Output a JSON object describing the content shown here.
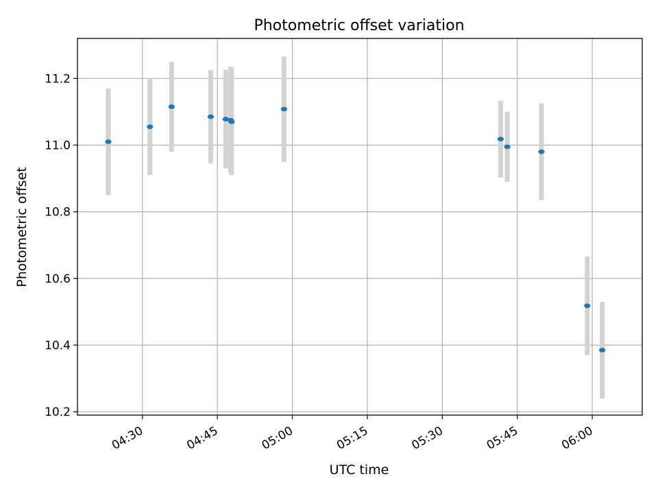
{
  "chart_data": {
    "type": "scatter",
    "title": "Photometric offset variation",
    "xlabel": "UTC time",
    "ylabel": "Photometric offset",
    "xlim": [
      "04:17",
      "06:10"
    ],
    "ylim": [
      10.19,
      11.32
    ],
    "xticks": [
      "04:30",
      "04:45",
      "05:00",
      "05:15",
      "05:30",
      "05:45",
      "06:00"
    ],
    "yticks": [
      10.2,
      10.4,
      10.6,
      10.8,
      11.0,
      11.2
    ],
    "grid": true,
    "legend": false,
    "colors": {
      "point": "#1f77b4",
      "errorbar": "#d3d3d3",
      "grid": "#b0b0b0"
    },
    "points": [
      {
        "x": "04:23:10",
        "y": 11.01,
        "err": 0.16
      },
      {
        "x": "04:31:30",
        "y": 11.055,
        "err": 0.145
      },
      {
        "x": "04:35:50",
        "y": 11.115,
        "err": 0.135
      },
      {
        "x": "04:43:40",
        "y": 11.085,
        "err": 0.14
      },
      {
        "x": "04:46:40",
        "y": 11.078,
        "err": 0.148
      },
      {
        "x": "04:47:40",
        "y": 11.075,
        "err": 0.16
      },
      {
        "x": "04:47:50",
        "y": 11.07,
        "err": 0.16
      },
      {
        "x": "04:58:20",
        "y": 11.108,
        "err": 0.158
      },
      {
        "x": "05:41:40",
        "y": 11.018,
        "err": 0.115
      },
      {
        "x": "05:43:00",
        "y": 10.995,
        "err": 0.105
      },
      {
        "x": "05:49:50",
        "y": 10.98,
        "err": 0.145
      },
      {
        "x": "05:59:00",
        "y": 10.518,
        "err": 0.148
      },
      {
        "x": "06:02:00",
        "y": 10.385,
        "err": 0.145
      }
    ]
  }
}
